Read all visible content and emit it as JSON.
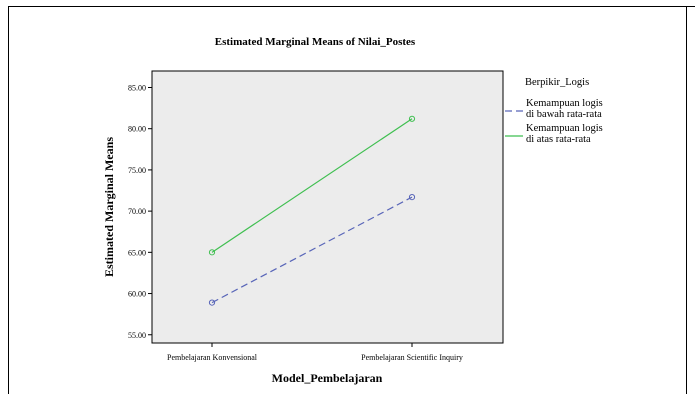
{
  "chart_data": {
    "type": "line",
    "title": "Estimated Marginal Means of Nilai_Postes",
    "xlabel": "Model_Pembelajaran",
    "ylabel": "Estimated Marginal Means",
    "categories": [
      "Pembelajaran Konvensional",
      "Pembelajaran Scientific Inquiry"
    ],
    "ylim": [
      54,
      87
    ],
    "yticks": [
      "55.00",
      "60.00",
      "65.00",
      "70.00",
      "75.00",
      "80.00",
      "85.00"
    ],
    "legend_title": "Berpikir_Logis",
    "legend_position": "right",
    "grid": false,
    "series": [
      {
        "name": "Kemampuan logis di bawah rata-rata",
        "label_lines": [
          "Kemampuan logis",
          "di bawah rata-rata"
        ],
        "values": [
          58.9,
          71.7
        ],
        "color": "#5865b8",
        "dash": true
      },
      {
        "name": "Kemampuan logis di atas rata-rata",
        "label_lines": [
          "Kemampuan logis",
          "di atas rata-rata"
        ],
        "values": [
          65.0,
          81.2
        ],
        "color": "#3fbf50",
        "dash": false
      }
    ],
    "plot_background": "#ececec"
  }
}
